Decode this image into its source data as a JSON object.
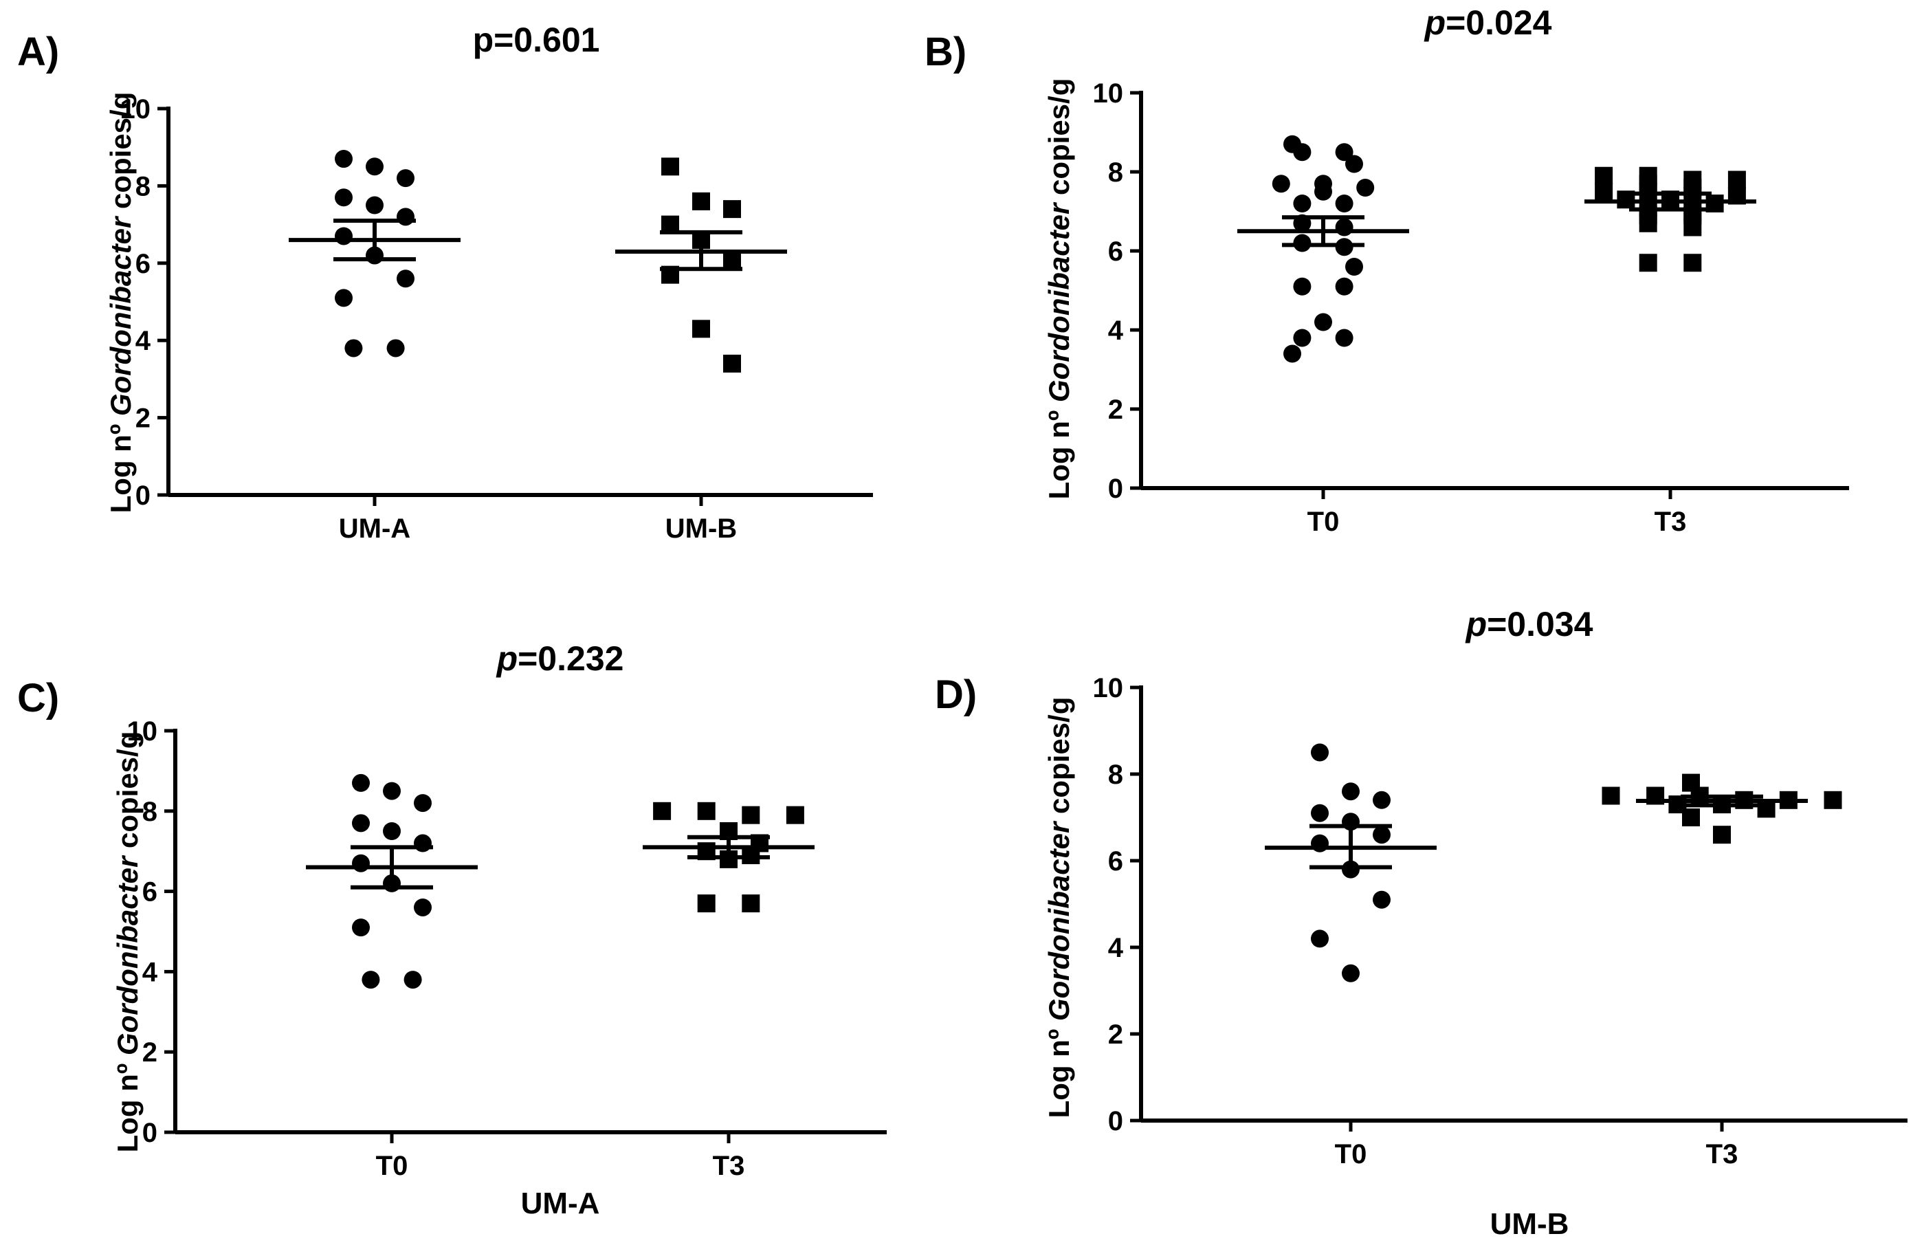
{
  "figure": {
    "y_label": {
      "prefix": "Log nº ",
      "italic": "Gordonibacter",
      "suffix": " copies/g"
    },
    "colors": {
      "marker": "#000000",
      "axis": "#000000",
      "background": "#ffffff"
    }
  },
  "chart_data": [
    {
      "panel": "A)",
      "type": "scatter",
      "title": {
        "italic_p": false,
        "p_text": "p",
        "value_text": "=0.601"
      },
      "categories": [
        "UM-A",
        "UM-B"
      ],
      "markers": [
        "circle",
        "square"
      ],
      "xlabel": "",
      "ylabel": "Log nº Gordonibacter copies/g",
      "ylim": [
        0,
        10
      ],
      "yticks": [
        0,
        2,
        4,
        6,
        8,
        10
      ],
      "series": [
        {
          "name": "UM-A",
          "mean": 6.6,
          "sem_low": 6.1,
          "sem_high": 7.1,
          "points": [
            8.7,
            8.5,
            8.2,
            7.7,
            7.5,
            7.2,
            6.7,
            6.2,
            5.6,
            5.1,
            3.8,
            3.8
          ]
        },
        {
          "name": "UM-B",
          "mean": 6.3,
          "sem_low": 5.85,
          "sem_high": 6.8,
          "points": [
            8.5,
            7.6,
            7.4,
            7.0,
            6.6,
            6.1,
            5.7,
            4.3,
            3.4
          ]
        }
      ]
    },
    {
      "panel": "B)",
      "type": "scatter",
      "title": {
        "italic_p": true,
        "p_text": "p",
        "value_text": "=0.024"
      },
      "categories": [
        "T0",
        "T3"
      ],
      "markers": [
        "circle",
        "square"
      ],
      "xlabel": "",
      "ylabel": "Log nº Gordonibacter copies/g",
      "ylim": [
        0,
        10
      ],
      "yticks": [
        0,
        2,
        4,
        6,
        8,
        10
      ],
      "series": [
        {
          "name": "T0",
          "mean": 6.5,
          "sem_low": 6.15,
          "sem_high": 6.85,
          "points": [
            8.7,
            8.5,
            8.5,
            8.2,
            7.7,
            7.7,
            7.6,
            7.5,
            7.2,
            7.2,
            6.7,
            6.6,
            6.2,
            6.1,
            5.6,
            5.1,
            5.1,
            4.2,
            3.8,
            3.8,
            3.4
          ]
        },
        {
          "name": "T3",
          "mean": 7.25,
          "sem_low": 7.05,
          "sem_high": 7.45,
          "points": [
            7.9,
            7.9,
            7.8,
            7.8,
            7.7,
            7.6,
            7.5,
            7.5,
            7.4,
            7.4,
            7.3,
            7.3,
            7.2,
            7.1,
            7.0,
            6.9,
            6.9,
            6.7,
            6.6,
            5.7,
            5.7
          ]
        }
      ]
    },
    {
      "panel": "C)",
      "type": "scatter",
      "title": {
        "italic_p": true,
        "p_text": "p",
        "value_text": "=0.232"
      },
      "categories": [
        "T0",
        "T3"
      ],
      "markers": [
        "circle",
        "square"
      ],
      "xlabel": "UM-A",
      "ylabel": "Log nº Gordonibacter copies/g",
      "ylim": [
        0,
        10
      ],
      "yticks": [
        0,
        2,
        4,
        6,
        8,
        10
      ],
      "series": [
        {
          "name": "T0",
          "mean": 6.6,
          "sem_low": 6.1,
          "sem_high": 7.1,
          "points": [
            8.7,
            8.5,
            8.2,
            7.7,
            7.5,
            7.2,
            6.7,
            6.2,
            5.6,
            5.1,
            3.8,
            3.8
          ]
        },
        {
          "name": "T3",
          "mean": 7.1,
          "sem_low": 6.85,
          "sem_high": 7.35,
          "points": [
            8.0,
            8.0,
            7.9,
            7.9,
            7.5,
            7.2,
            7.0,
            6.9,
            6.8,
            5.7,
            5.7
          ]
        }
      ]
    },
    {
      "panel": "D)",
      "type": "scatter",
      "title": {
        "italic_p": true,
        "p_text": "p",
        "value_text": "=0.034"
      },
      "categories": [
        "T0",
        "T3"
      ],
      "markers": [
        "circle",
        "square"
      ],
      "xlabel": "UM-B",
      "ylabel": "Log nº Gordonibacter copies/g",
      "ylim": [
        0,
        10
      ],
      "yticks": [
        0,
        2,
        4,
        6,
        8,
        10
      ],
      "series": [
        {
          "name": "T0",
          "mean": 6.3,
          "sem_low": 5.85,
          "sem_high": 6.8,
          "points": [
            8.5,
            7.6,
            7.4,
            7.1,
            6.9,
            6.6,
            6.4,
            5.8,
            5.1,
            4.2,
            3.4
          ]
        },
        {
          "name": "T3",
          "mean": 7.38,
          "sem_low": 7.28,
          "sem_high": 7.48,
          "points": [
            7.8,
            7.5,
            7.5,
            7.5,
            7.4,
            7.4,
            7.4,
            7.3,
            7.3,
            7.2,
            7.0,
            6.6
          ]
        }
      ]
    }
  ]
}
